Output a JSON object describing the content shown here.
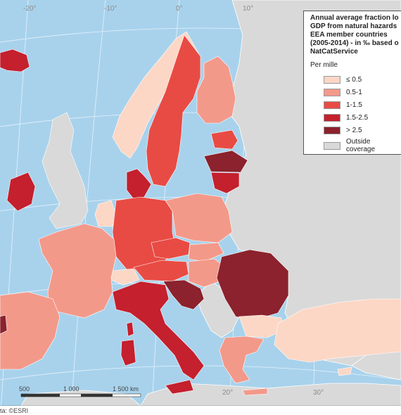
{
  "legend": {
    "title": "Annual average fraction lo\nGDP from natural hazards\nEEA member countries\n(2005-2014) - in ‰ based o\nNatCatService",
    "subtitle": "Per mille",
    "items": [
      {
        "label": "≤ 0.5",
        "color": "#fcd7c6"
      },
      {
        "label": "0.5-1",
        "color": "#f3998a"
      },
      {
        "label": "1-1.5",
        "color": "#e84b44"
      },
      {
        "label": "1.5-2.5",
        "color": "#c4202e"
      },
      {
        "label": "> 2.5",
        "color": "#8b222d"
      },
      {
        "label": "Outside coverage",
        "color": "#d9d9d9"
      }
    ]
  },
  "graticule_labels": [
    "-20°",
    "-10°",
    "0°",
    "10°",
    "20°",
    "30°"
  ],
  "scale": {
    "labels": [
      "500",
      "1 000",
      "1 500 km"
    ]
  },
  "footer": "ta: ©ESRI",
  "colors": {
    "sea": "#a8d2ec",
    "outside": "#d9d9d9",
    "border": "#ffffff"
  }
}
